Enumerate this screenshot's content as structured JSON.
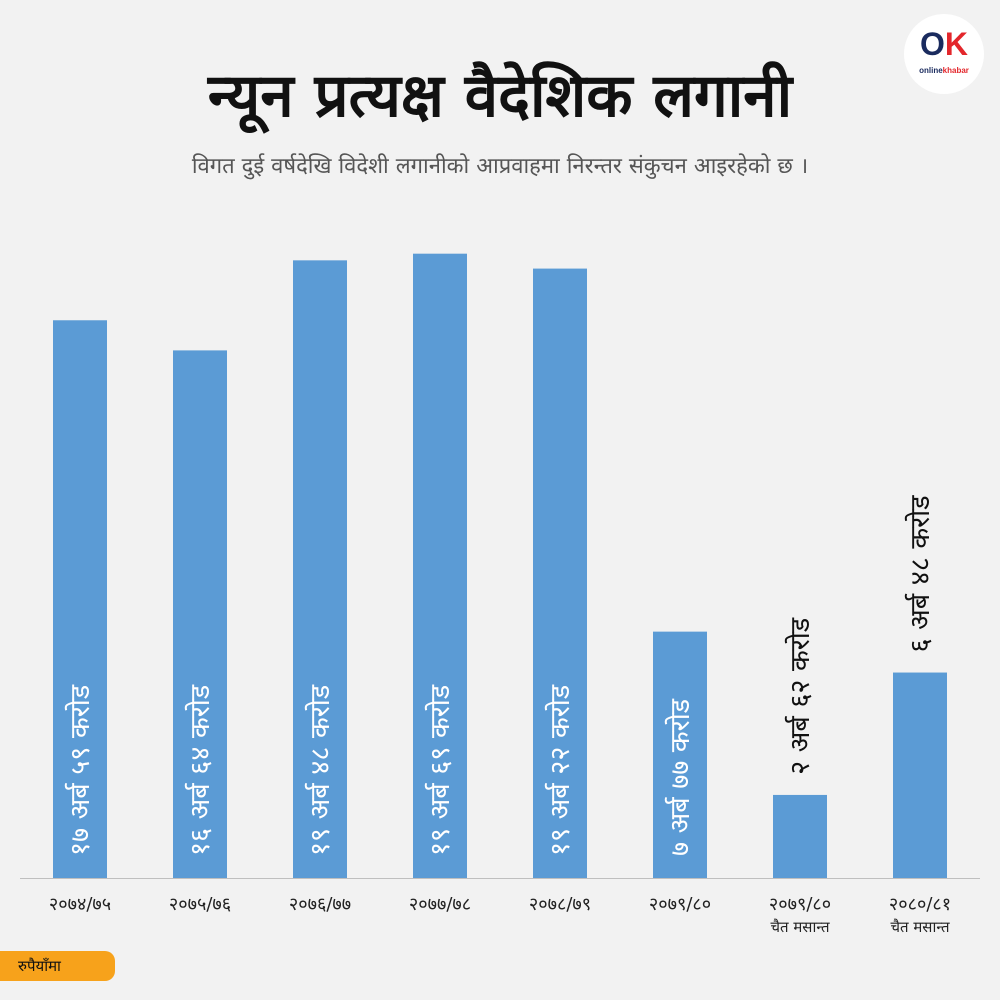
{
  "title": "न्यून प्रत्यक्ष वैदेशिक लगानी",
  "subtitle": "विगत दुई वर्षदेखि विदेशी लगानीको आप्रवाहमा निरन्तर संकुचन आइरहेको छ ।",
  "logo": {
    "mark_o": "O",
    "mark_k": "K",
    "brand_a": "online",
    "brand_b": "khabar"
  },
  "unit_label": "रुपैयाँमा",
  "colors": {
    "bar": "#5b9bd5",
    "background": "#f2f2f2",
    "badge": "#f7a21b"
  },
  "chart_data": {
    "type": "bar",
    "title": "न्यून प्रत्यक्ष वैदेशिक लगानी",
    "categories": [
      [
        "२०७४/७५"
      ],
      [
        "२०७५/७६"
      ],
      [
        "२०७६/७७"
      ],
      [
        "२०७७/७८"
      ],
      [
        "२०७८/७९"
      ],
      [
        "२०७९/८०"
      ],
      [
        "२०७९/८०",
        "चैत मसान्त"
      ],
      [
        "२०८०/८१",
        "चैत मसान्त"
      ]
    ],
    "values": [
      17.59,
      16.64,
      19.48,
      19.69,
      19.22,
      7.77,
      2.62,
      6.48
    ],
    "value_labels": [
      "१७ अर्ब ५९ करोड",
      "१६ अर्ब ६४ करोड",
      "१९ अर्ब ४८ करोड",
      "१९ अर्ब ६९ करोड",
      "१९ अर्ब २२ करोड",
      "७ अर्ब ७७ करोड",
      "२ अर्ब ६२ करोड",
      "६ अर्ब ४८ करोड"
    ],
    "label_inside": [
      true,
      true,
      true,
      true,
      true,
      true,
      false,
      false
    ],
    "ylim": [
      0,
      20.5
    ],
    "grid": false,
    "legend": "none"
  }
}
